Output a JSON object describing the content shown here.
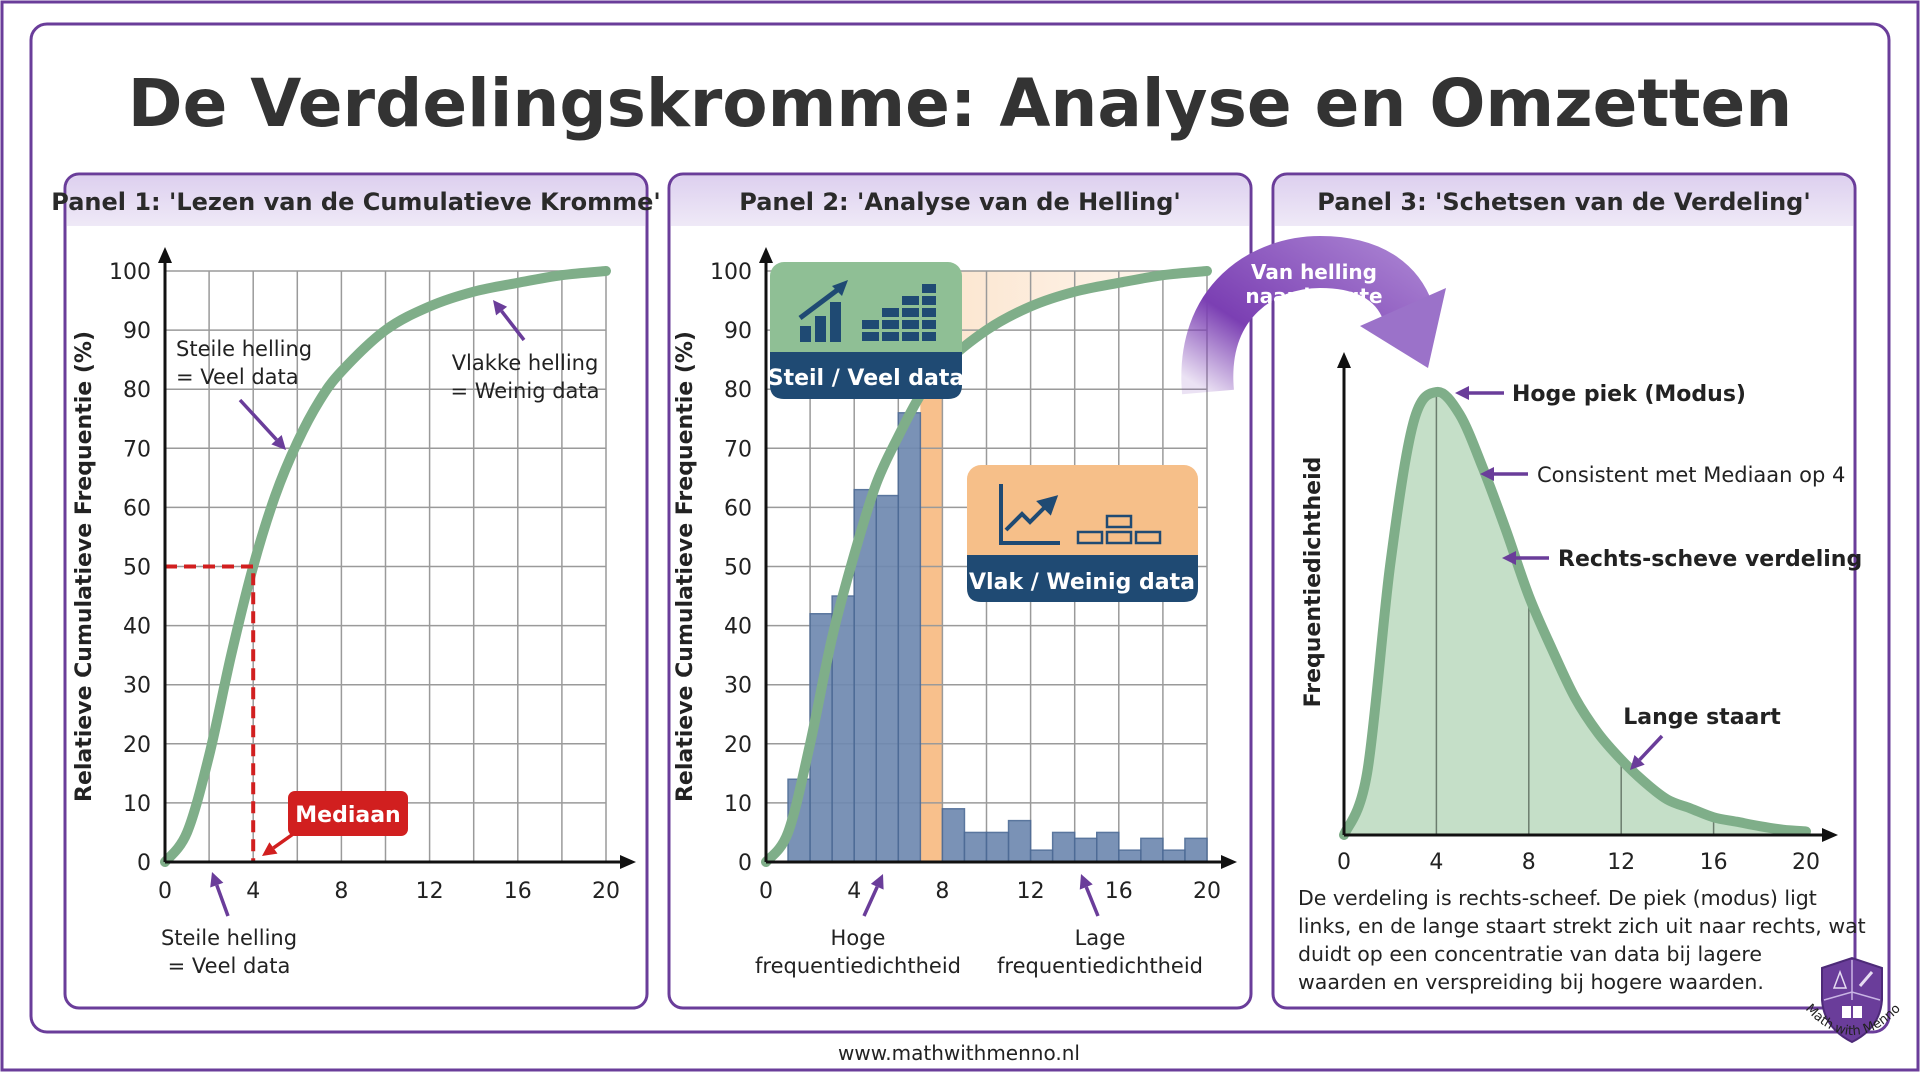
{
  "title": "De Verdelingskromme: Analyse en Omzetten",
  "footer_url": "www.mathwithmenno.nl",
  "logo": {
    "text": "Math with Menno"
  },
  "colors": {
    "frame": "#6a3d9a",
    "curve": "#7fae89",
    "bars": "#6f89b0",
    "navy": "#1f4a73",
    "median": "#d11f1f",
    "orange": "#f7c48f",
    "purple_arrow": "#7b3fb3",
    "panel_header": "#e8def4"
  },
  "panels": [
    {
      "header": "Panel 1: 'Lezen van de Cumulatieve Kromme'",
      "annotations": {
        "steep_top": [
          "Steile helling",
          "= Veel data"
        ],
        "flat": [
          "Vlakke helling",
          "= Weinig data"
        ],
        "steep_bottom": [
          "Steile helling",
          "= Veel data"
        ],
        "median_label": "Mediaan"
      }
    },
    {
      "header": "Panel 2: 'Analyse van de Helling'",
      "callouts": {
        "steep": "Steil / Veel data",
        "flat": "Vlak / Weinig data"
      },
      "annotations": {
        "high": [
          "Hoge",
          "frequentiedichtheid"
        ],
        "low": [
          "Lage",
          "frequentiedichtheid"
        ]
      }
    },
    {
      "header": "Panel 3: 'Schetsen van de Verdeling'",
      "transition_arrow": [
        "Van helling",
        "naar hoogte"
      ],
      "annotations": {
        "peak": "Hoge piek (Modus)",
        "consistent": "Consistent met Mediaan op 4",
        "skew": "Rechts-scheve verdeling",
        "tail": "Lange staart"
      },
      "description": [
        "De verdeling is rechts-scheef. De piek (modus) ligt",
        "links, en de lange staart strekt zich uit naar rechts, wat",
        "duidt op een concentratie van data bij lagere",
        "waarden en verspreiding bij hogere waarden."
      ]
    }
  ],
  "chart_data": [
    {
      "type": "line",
      "title": "",
      "xlabel": "",
      "ylabel": "Relatieve Cumulatieve Frequentie (%)",
      "xlim": [
        0,
        20
      ],
      "ylim": [
        0,
        100
      ],
      "x_ticks": [
        "0",
        "4",
        "8",
        "12",
        "16",
        "20"
      ],
      "y_ticks": [
        "0",
        "10",
        "20",
        "30",
        "40",
        "50",
        "60",
        "70",
        "80",
        "90",
        "100"
      ],
      "grid": true,
      "x": [
        0,
        1,
        2,
        3,
        4,
        5,
        6,
        7,
        8,
        10,
        12,
        14,
        16,
        18,
        20
      ],
      "y": [
        0,
        5,
        18,
        35,
        50,
        62,
        71,
        78,
        83,
        90,
        94,
        96.5,
        98,
        99.3,
        100
      ],
      "median": {
        "x": 4,
        "y": 50
      }
    },
    {
      "type": "bar",
      "title": "",
      "xlabel": "",
      "ylabel": "Relatieve Cumulatieve Frequentie (%)",
      "xlim": [
        0,
        20
      ],
      "ylim": [
        0,
        100
      ],
      "x_ticks": [
        "0",
        "4",
        "8",
        "12",
        "16",
        "20"
      ],
      "y_ticks": [
        "0",
        "10",
        "20",
        "30",
        "40",
        "50",
        "60",
        "70",
        "80",
        "90",
        "100"
      ],
      "grid": true,
      "bins": [
        [
          1,
          2
        ],
        [
          2,
          3
        ],
        [
          3,
          4
        ],
        [
          4,
          5
        ],
        [
          5,
          6
        ],
        [
          6,
          7
        ],
        [
          8,
          9
        ],
        [
          9,
          10
        ],
        [
          10,
          11
        ],
        [
          11,
          12
        ],
        [
          12,
          13
        ],
        [
          13,
          14
        ],
        [
          14,
          15
        ],
        [
          15,
          16
        ],
        [
          16,
          17
        ],
        [
          17,
          18
        ],
        [
          18,
          19
        ],
        [
          19,
          20
        ]
      ],
      "values": [
        14,
        42,
        45,
        63,
        62,
        76,
        9,
        5,
        5,
        7,
        2,
        5,
        4,
        5,
        2,
        4,
        2,
        4
      ],
      "highlight_range": [
        7,
        8
      ],
      "curve": {
        "x": [
          0,
          1,
          2,
          3,
          4,
          5,
          6,
          7,
          8,
          10,
          12,
          14,
          16,
          18,
          20
        ],
        "y": [
          0,
          5,
          20,
          38,
          52,
          64,
          72,
          79,
          84,
          90,
          94,
          96.5,
          98,
          99.3,
          100
        ]
      }
    },
    {
      "type": "area",
      "title": "",
      "xlabel": "",
      "ylabel": "Frequentiedichtheid",
      "xlim": [
        0,
        20
      ],
      "x_ticks": [
        "0",
        "4",
        "8",
        "12",
        "16",
        "20"
      ],
      "grid": false,
      "mode_x": 4,
      "x": [
        0,
        1,
        2,
        3,
        4,
        5,
        6,
        7,
        8,
        9,
        10,
        11,
        12,
        13,
        14,
        15,
        16,
        17,
        18,
        19,
        20
      ],
      "y_relative": [
        0,
        0.14,
        0.61,
        0.93,
        1.0,
        0.95,
        0.83,
        0.69,
        0.54,
        0.42,
        0.31,
        0.23,
        0.17,
        0.12,
        0.08,
        0.06,
        0.04,
        0.03,
        0.02,
        0.012,
        0.008
      ]
    }
  ]
}
